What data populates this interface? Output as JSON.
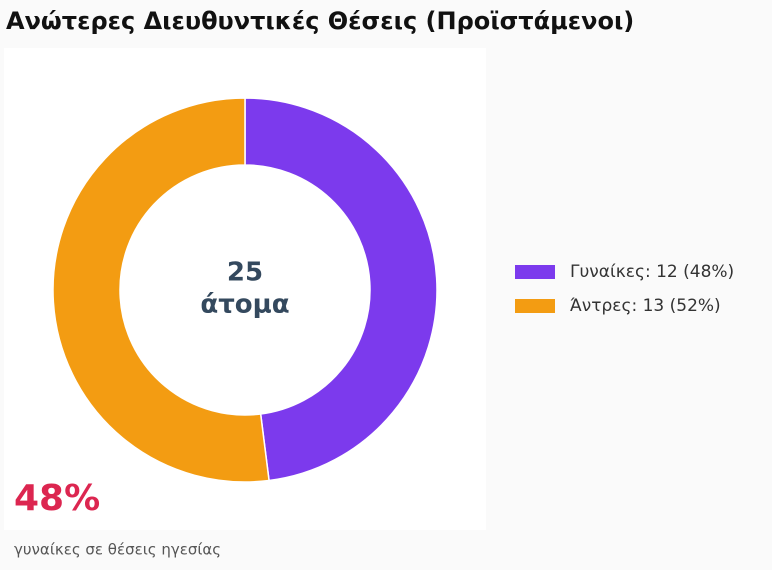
{
  "chart_data": {
    "type": "donut",
    "title": "Ανώτερες Διευθυντικές Θέσεις (Προϊστάμενοι)",
    "categories": [
      "Γυναίκες: 12 (48%)",
      "Άντρες: 13 (52%)"
    ],
    "values": [
      12,
      13
    ],
    "colors": [
      "#7c3aed",
      "#f39c12"
    ],
    "center_total": 25,
    "center_label": "άτομα",
    "stat_label": "48%",
    "stat_caption": "γυναίκες σε θέσεις ηγεσίας",
    "legend": "right"
  }
}
